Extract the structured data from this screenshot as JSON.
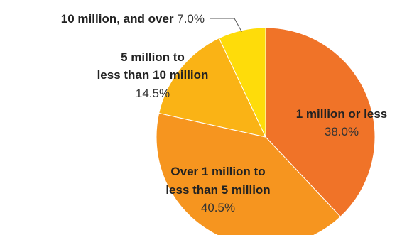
{
  "chart_data": {
    "type": "pie",
    "title": "",
    "start": "top",
    "direction": "clockwise",
    "categories": [
      "1 million or less",
      "Over 1 million to less than 5 million",
      "5 million to less than 10 million",
      "10 million, and over"
    ],
    "values": [
      38.0,
      40.5,
      14.5,
      7.0
    ],
    "slices": [
      {
        "label_lines": [
          "1 million or less"
        ],
        "value": 38.0,
        "value_text": "38.0%",
        "color": "#f07328"
      },
      {
        "label_lines": [
          "Over 1 million to",
          "less than 5 million"
        ],
        "value": 40.5,
        "value_text": "40.5%",
        "color": "#f6951f"
      },
      {
        "label_lines": [
          "5 million to",
          "less than 10 million"
        ],
        "value": 14.5,
        "value_text": "14.5%",
        "color": "#fab315"
      },
      {
        "label_lines": [
          "10 million, and over"
        ],
        "value": 7.0,
        "value_text": "7.0%",
        "color": "#fedc0a"
      }
    ]
  }
}
